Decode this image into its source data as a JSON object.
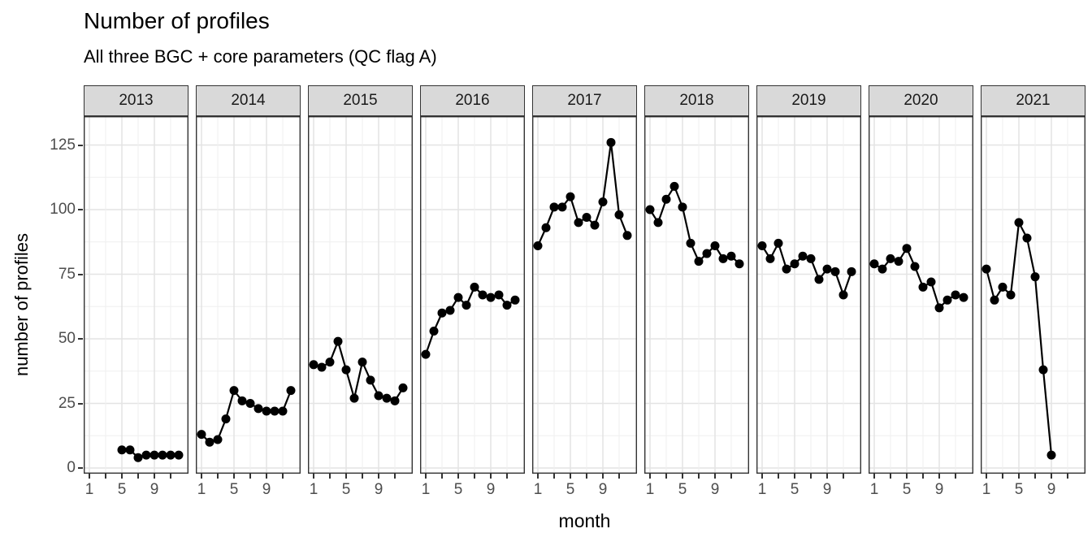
{
  "chart_data": {
    "type": "line",
    "title": "Number of profiles",
    "subtitle": "All three BGC + core parameters (QC flag A)",
    "xlabel": "month",
    "ylabel": "number of profiles",
    "y_ticks": [
      0,
      25,
      50,
      75,
      100,
      125
    ],
    "y_minor_ticks": [
      12.5,
      37.5,
      62.5,
      87.5,
      112.5
    ],
    "x_ticks_labeled": [
      1,
      5,
      9
    ],
    "x_ticks_unlabeled": [
      3,
      7,
      11
    ],
    "xlim": [
      1,
      12
    ],
    "ylim": [
      0,
      131
    ],
    "grid": true,
    "legend_position": "none",
    "point_style": "filled-circle",
    "facets": [
      {
        "year": "2013",
        "x": [
          5,
          6,
          7,
          8,
          9,
          10,
          11,
          12
        ],
        "y": [
          7,
          7,
          4,
          5,
          5,
          5,
          5,
          5
        ]
      },
      {
        "year": "2014",
        "x": [
          1,
          2,
          3,
          4,
          5,
          6,
          7,
          8,
          9,
          10,
          11,
          12
        ],
        "y": [
          13,
          10,
          11,
          19,
          30,
          26,
          25,
          23,
          22,
          22,
          22,
          30
        ]
      },
      {
        "year": "2015",
        "x": [
          1,
          2,
          3,
          4,
          5,
          6,
          7,
          8,
          9,
          10,
          11,
          12
        ],
        "y": [
          40,
          39,
          41,
          49,
          38,
          27,
          41,
          34,
          28,
          27,
          26,
          31
        ]
      },
      {
        "year": "2016",
        "x": [
          1,
          2,
          3,
          4,
          5,
          6,
          7,
          8,
          9,
          10,
          11,
          12
        ],
        "y": [
          44,
          53,
          60,
          61,
          66,
          63,
          70,
          67,
          66,
          67,
          63,
          65
        ]
      },
      {
        "year": "2017",
        "x": [
          1,
          2,
          3,
          4,
          5,
          6,
          7,
          8,
          9,
          10,
          11,
          12
        ],
        "y": [
          86,
          93,
          101,
          101,
          105,
          95,
          97,
          94,
          103,
          126,
          98,
          90
        ]
      },
      {
        "year": "2018",
        "x": [
          1,
          2,
          3,
          4,
          5,
          6,
          7,
          8,
          9,
          10,
          11,
          12
        ],
        "y": [
          100,
          95,
          104,
          109,
          101,
          87,
          80,
          83,
          86,
          81,
          82,
          79
        ]
      },
      {
        "year": "2019",
        "x": [
          1,
          2,
          3,
          4,
          5,
          6,
          7,
          8,
          9,
          10,
          11,
          12
        ],
        "y": [
          86,
          81,
          87,
          77,
          79,
          82,
          81,
          73,
          77,
          76,
          67,
          76
        ]
      },
      {
        "year": "2020",
        "x": [
          1,
          2,
          3,
          4,
          5,
          6,
          7,
          8,
          9,
          10,
          11,
          12
        ],
        "y": [
          79,
          77,
          81,
          80,
          85,
          78,
          70,
          72,
          62,
          65,
          67,
          66
        ]
      },
      {
        "year": "2021",
        "x": [
          1,
          2,
          3,
          4,
          5,
          6,
          7,
          8,
          9
        ],
        "y": [
          77,
          65,
          70,
          67,
          95,
          89,
          74,
          38,
          5
        ]
      }
    ]
  },
  "colors": {
    "series": "#000000",
    "strip_bg": "#d9d9d9",
    "strip_border": "#333333",
    "panel_border": "#333333",
    "panel_bg": "#ffffff",
    "grid_major": "#e4e4e4",
    "grid_minor": "#efefef",
    "tick_label": "#4d4d4d",
    "tick_mark": "#333333",
    "text": "#000000"
  }
}
